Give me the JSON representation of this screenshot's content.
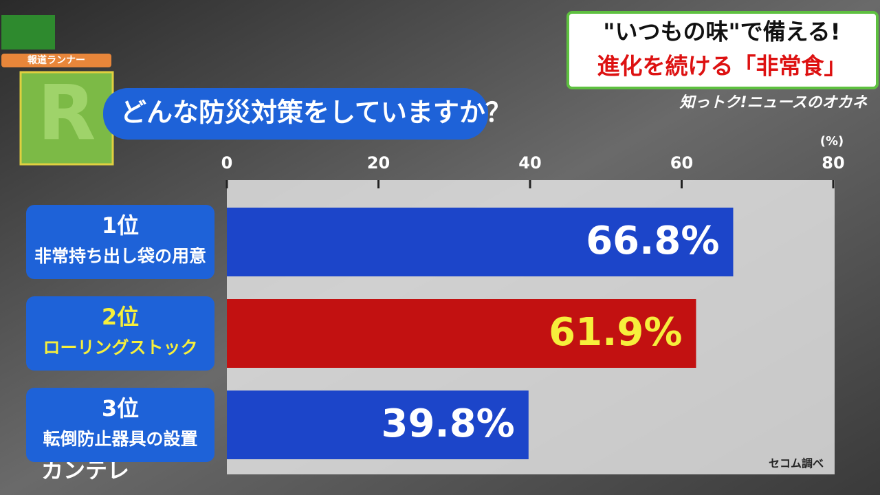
{
  "header": {
    "headline_1": "\"いつもの味\"で備える!",
    "headline_2": "進化を続ける「非常食」",
    "program": "知っトク!ニュースのオカネ",
    "corner": "報道ランナー",
    "channel": "カンテレ"
  },
  "chart_data": {
    "type": "bar",
    "orientation": "horizontal",
    "title": "どんな防災対策をしていますか？",
    "x_unit": "(%)",
    "ranks": [
      "1位",
      "2位",
      "3位"
    ],
    "categories": [
      "非常持ち出し袋の用意",
      "ローリングストック",
      "転倒防止器具の設置"
    ],
    "values": [
      66.8,
      61.9,
      39.8
    ],
    "value_labels": [
      "66.8%",
      "61.9%",
      "39.8%"
    ],
    "colors": [
      "#1c45c9",
      "#c21111",
      "#1c45c9"
    ],
    "label_colors": [
      "#ffffff",
      "#f6ef3c",
      "#ffffff"
    ],
    "xlim": [
      0,
      80
    ],
    "xticks": [
      0,
      20,
      40,
      60,
      80
    ],
    "source": "セコム調べ"
  }
}
